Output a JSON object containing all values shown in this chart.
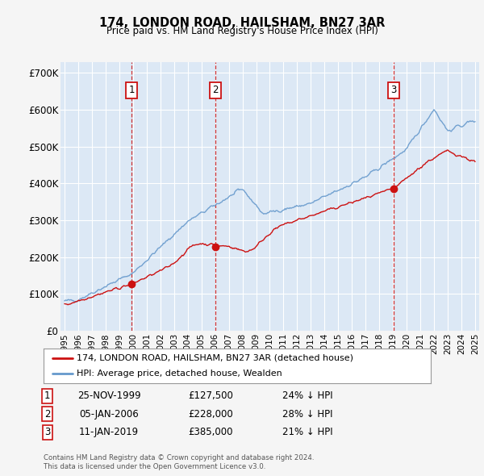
{
  "title": "174, LONDON ROAD, HAILSHAM, BN27 3AR",
  "subtitle": "Price paid vs. HM Land Registry's House Price Index (HPI)",
  "ylabel_ticks": [
    "£0",
    "£100K",
    "£200K",
    "£300K",
    "£400K",
    "£500K",
    "£600K",
    "£700K"
  ],
  "ytick_values": [
    0,
    100000,
    200000,
    300000,
    400000,
    500000,
    600000,
    700000
  ],
  "ylim": [
    0,
    730000
  ],
  "xlim_start": 1994.7,
  "xlim_end": 2025.3,
  "background_color": "#f5f5f5",
  "plot_bg_color": "#dce8f5",
  "grid_color": "#ffffff",
  "hpi_color": "#6699cc",
  "price_color": "#cc1111",
  "vline_color": "#cc1111",
  "sale_dates": [
    1999.9,
    2006.02,
    2019.04
  ],
  "sale_labels": [
    "1",
    "2",
    "3"
  ],
  "sale_prices": [
    127500,
    228000,
    385000
  ],
  "sale_annotations": [
    "25-NOV-1999",
    "05-JAN-2006",
    "11-JAN-2019"
  ],
  "sale_prices_str": [
    "£127,500",
    "£228,000",
    "£385,000"
  ],
  "sale_hpi_pct": [
    "24% ↓ HPI",
    "28% ↓ HPI",
    "21% ↓ HPI"
  ],
  "legend_line1": "174, LONDON ROAD, HAILSHAM, BN27 3AR (detached house)",
  "legend_line2": "HPI: Average price, detached house, Wealden",
  "footer1": "Contains HM Land Registry data © Crown copyright and database right 2024.",
  "footer2": "This data is licensed under the Open Government Licence v3.0.",
  "xtick_years": [
    1995,
    1996,
    1997,
    1998,
    1999,
    2000,
    2001,
    2002,
    2003,
    2004,
    2005,
    2006,
    2007,
    2008,
    2009,
    2010,
    2011,
    2012,
    2013,
    2014,
    2015,
    2016,
    2017,
    2018,
    2019,
    2020,
    2021,
    2022,
    2023,
    2024,
    2025
  ]
}
